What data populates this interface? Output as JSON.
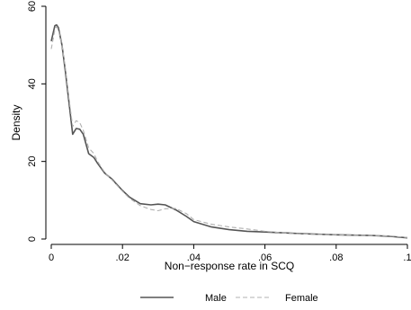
{
  "chart_data": {
    "type": "line",
    "title": "",
    "xlabel": "Non−response rate in SCQ",
    "ylabel": "Density",
    "xlim": [
      0,
      0.1
    ],
    "ylim": [
      0,
      60
    ],
    "x_ticks": [
      0,
      0.02,
      0.04,
      0.06,
      0.08,
      0.1
    ],
    "x_tick_labels": [
      "0",
      ".02",
      ".04",
      ".06",
      ".08",
      ".1"
    ],
    "y_ticks": [
      0,
      20,
      40,
      60
    ],
    "y_tick_labels": [
      "0",
      "20",
      "40",
      "60"
    ],
    "grid": false,
    "legend_position": "bottom",
    "series": [
      {
        "name": "Male",
        "color": "#555555",
        "style": "solid",
        "points": [
          [
            0,
            51
          ],
          [
            0.001,
            55
          ],
          [
            0.0015,
            55.2
          ],
          [
            0.002,
            54.5
          ],
          [
            0.003,
            50
          ],
          [
            0.004,
            43
          ],
          [
            0.005,
            35
          ],
          [
            0.006,
            27
          ],
          [
            0.007,
            28.5
          ],
          [
            0.008,
            28.3
          ],
          [
            0.009,
            27
          ],
          [
            0.0105,
            22
          ],
          [
            0.012,
            21
          ],
          [
            0.013,
            19.5
          ],
          [
            0.015,
            17
          ],
          [
            0.017,
            15.5
          ],
          [
            0.02,
            12.5
          ],
          [
            0.022,
            10.8
          ],
          [
            0.025,
            9.1
          ],
          [
            0.028,
            8.8
          ],
          [
            0.03,
            9
          ],
          [
            0.032,
            8.8
          ],
          [
            0.035,
            7.5
          ],
          [
            0.038,
            5.8
          ],
          [
            0.04,
            4.5
          ],
          [
            0.045,
            3.1
          ],
          [
            0.05,
            2.4
          ],
          [
            0.055,
            2
          ],
          [
            0.06,
            1.8
          ],
          [
            0.065,
            1.6
          ],
          [
            0.07,
            1.4
          ],
          [
            0.08,
            1.1
          ],
          [
            0.09,
            0.9
          ],
          [
            0.095,
            0.7
          ],
          [
            0.1,
            0.3
          ]
        ]
      },
      {
        "name": "Female",
        "color": "#b0b0b0",
        "style": "dashed",
        "points": [
          [
            0,
            49
          ],
          [
            0.001,
            54
          ],
          [
            0.0015,
            54.8
          ],
          [
            0.002,
            54
          ],
          [
            0.003,
            50
          ],
          [
            0.004,
            44
          ],
          [
            0.005,
            36
          ],
          [
            0.006,
            29
          ],
          [
            0.007,
            30.5
          ],
          [
            0.008,
            30
          ],
          [
            0.009,
            28
          ],
          [
            0.0105,
            23.5
          ],
          [
            0.012,
            22
          ],
          [
            0.013,
            20
          ],
          [
            0.015,
            17.2
          ],
          [
            0.017,
            15.3
          ],
          [
            0.02,
            12.3
          ],
          [
            0.022,
            10.5
          ],
          [
            0.025,
            8.6
          ],
          [
            0.028,
            7.6
          ],
          [
            0.03,
            7.3
          ],
          [
            0.032,
            7.8
          ],
          [
            0.035,
            7.9
          ],
          [
            0.038,
            6.5
          ],
          [
            0.04,
            5
          ],
          [
            0.045,
            3.8
          ],
          [
            0.05,
            3.1
          ],
          [
            0.055,
            2.6
          ],
          [
            0.06,
            2
          ],
          [
            0.065,
            1.6
          ],
          [
            0.07,
            1.3
          ],
          [
            0.08,
            1.1
          ],
          [
            0.09,
            0.9
          ],
          [
            0.095,
            0.8
          ],
          [
            0.1,
            0.4
          ]
        ]
      }
    ]
  }
}
